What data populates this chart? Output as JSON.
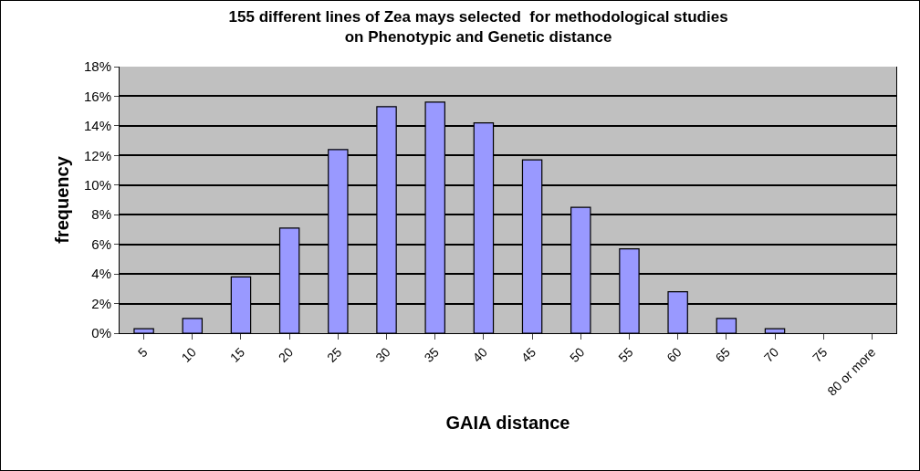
{
  "chart_data": {
    "type": "bar",
    "title": "155 different lines of Zea mays selected  for methodological studies\non Phenotypic and Genetic distance",
    "xlabel": "GAIA distance",
    "ylabel": "frequency",
    "categories": [
      "5",
      "10",
      "15",
      "20",
      "25",
      "30",
      "35",
      "40",
      "45",
      "50",
      "55",
      "60",
      "65",
      "70",
      "75",
      "80 or more"
    ],
    "values": [
      0.3,
      1.0,
      3.8,
      7.1,
      12.4,
      15.3,
      15.6,
      14.2,
      11.7,
      8.5,
      5.7,
      2.8,
      1.0,
      0.3,
      0,
      0
    ],
    "color": "#9999ff",
    "ylim": [
      0,
      18
    ],
    "yticks": [
      {
        "value": 0,
        "label": "0%"
      },
      {
        "value": 2,
        "label": "2%"
      },
      {
        "value": 4,
        "label": "4%"
      },
      {
        "value": 6,
        "label": "6%"
      },
      {
        "value": 8,
        "label": "8%"
      },
      {
        "value": 10,
        "label": "10%"
      },
      {
        "value": 12,
        "label": "12%"
      },
      {
        "value": 14,
        "label": "14%"
      },
      {
        "value": 16,
        "label": "16%"
      },
      {
        "value": 18,
        "label": "18%"
      }
    ],
    "grid": "y",
    "legend": false
  }
}
